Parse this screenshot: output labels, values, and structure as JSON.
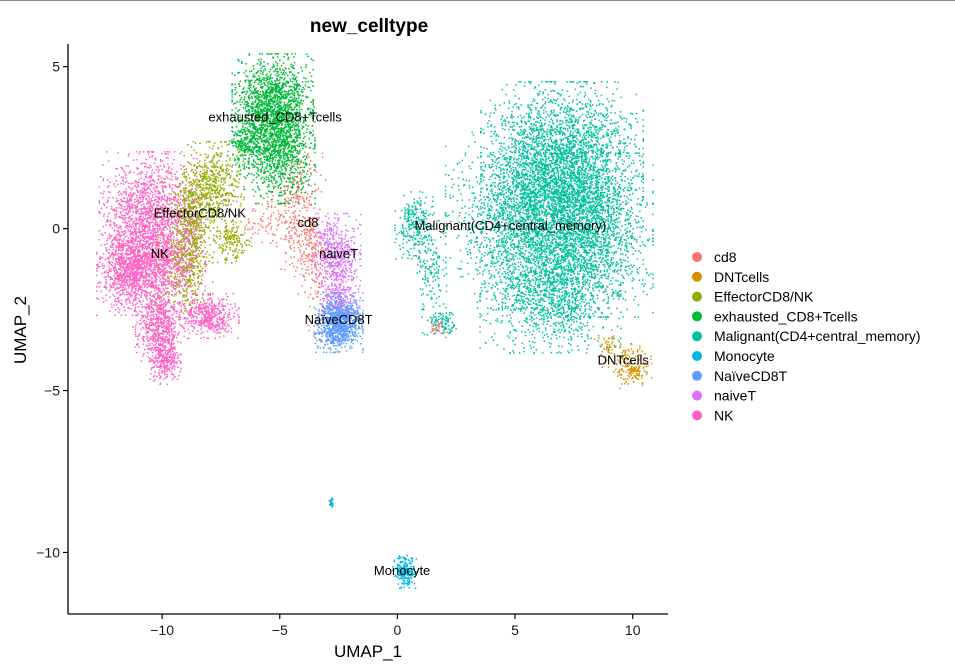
{
  "chart_data": {
    "type": "scatter",
    "title": "new_celltype",
    "xlabel": "UMAP_1",
    "ylabel": "UMAP_2",
    "xlim": [
      -14,
      11.5
    ],
    "ylim": [
      -11.9,
      5.7
    ],
    "x_ticks": [
      -10,
      -5,
      0,
      5,
      10
    ],
    "y_ticks": [
      5,
      0,
      -5,
      -10
    ],
    "x_tick_labels": [
      "−10",
      "−5",
      "0",
      "5",
      "10"
    ],
    "y_tick_labels": [
      "5",
      "0",
      "−5",
      "−10"
    ],
    "grid": false,
    "legend_position": "right",
    "legend": [
      {
        "name": "cd8",
        "color": "#F8766D"
      },
      {
        "name": "DNTcells",
        "color": "#D39200"
      },
      {
        "name": "EffectorCD8/NK",
        "color": "#93AA00"
      },
      {
        "name": "exhausted_CD8+Tcells",
        "color": "#00BA38"
      },
      {
        "name": "Malignant(CD4+central_memory)",
        "color": "#00C19F"
      },
      {
        "name": "Monocyte",
        "color": "#00B9E3"
      },
      {
        "name": "NaïveCD8T",
        "color": "#619CFF"
      },
      {
        "name": "naiveT",
        "color": "#DB72FB"
      },
      {
        "name": "NK",
        "color": "#FF61C3"
      }
    ],
    "cluster_labels": [
      {
        "text": "exhausted_CD8+Tcells",
        "x": -5.2,
        "y": 3.3
      },
      {
        "text": "EffectorCD8/NK",
        "x": -8.4,
        "y": 0.35
      },
      {
        "text": "cd8",
        "x": -3.8,
        "y": 0.05
      },
      {
        "text": "NK",
        "x": -10.1,
        "y": -0.9
      },
      {
        "text": "naiveT",
        "x": -2.5,
        "y": -0.9
      },
      {
        "text": "Malignant(CD4+central_memory)",
        "x": 4.8,
        "y": -0.05
      },
      {
        "text": "NaïveCD8T",
        "x": -2.5,
        "y": -2.95
      },
      {
        "text": "DNTcells",
        "x": 9.6,
        "y": -4.2
      },
      {
        "text": "Monocyte",
        "x": 0.2,
        "y": -10.7
      }
    ],
    "clusters": [
      {
        "name": "cd8",
        "color": "#F8766D",
        "n": 650,
        "blobs": [
          [
            -4.2,
            0.8,
            0.5,
            0.9,
            0.4
          ],
          [
            -3.6,
            -0.6,
            0.5,
            0.5,
            0.25
          ],
          [
            -5.5,
            0.2,
            0.9,
            0.35,
            0.15
          ],
          [
            -3.4,
            -2.0,
            0.35,
            0.6,
            0.1
          ],
          [
            1.7,
            -3.05,
            0.2,
            0.1,
            0.05
          ],
          [
            -10.6,
            -0.8,
            1.0,
            1.2,
            0.05
          ]
        ]
      },
      {
        "name": "DNTcells",
        "color": "#D39200",
        "n": 230,
        "blobs": [
          [
            10.0,
            -4.25,
            0.35,
            0.3,
            0.75
          ],
          [
            9.0,
            -3.7,
            0.3,
            0.25,
            0.25
          ]
        ]
      },
      {
        "name": "EffectorCD8/NK",
        "color": "#93AA00",
        "n": 1500,
        "blobs": [
          [
            -7.9,
            1.3,
            0.6,
            0.6,
            0.35
          ],
          [
            -8.8,
            0.3,
            0.5,
            0.7,
            0.3
          ],
          [
            -9.0,
            -1.2,
            0.5,
            0.7,
            0.25
          ],
          [
            -7.0,
            -0.4,
            0.35,
            0.3,
            0.1
          ]
        ]
      },
      {
        "name": "exhausted_CD8+Tcells",
        "color": "#00BA38",
        "n": 2600,
        "blobs": [
          [
            -5.3,
            3.9,
            0.75,
            0.65,
            0.5
          ],
          [
            -5.0,
            2.5,
            0.65,
            0.75,
            0.4
          ],
          [
            -6.4,
            2.6,
            0.35,
            0.4,
            0.1
          ]
        ]
      },
      {
        "name": "Malignant(CD4+central_memory)",
        "color": "#00C19F",
        "n": 8200,
        "blobs": [
          [
            7.0,
            2.0,
            1.5,
            1.1,
            0.34
          ],
          [
            5.5,
            0.3,
            1.5,
            1.2,
            0.26
          ],
          [
            8.1,
            -0.2,
            1.2,
            1.1,
            0.2
          ],
          [
            6.5,
            -2.0,
            1.3,
            0.8,
            0.14
          ],
          [
            0.7,
            0.1,
            0.35,
            0.45,
            0.03
          ],
          [
            1.4,
            -1.4,
            0.3,
            0.9,
            0.02
          ],
          [
            2.0,
            -2.9,
            0.25,
            0.2,
            0.01
          ]
        ]
      },
      {
        "name": "Monocyte",
        "color": "#00B9E3",
        "n": 230,
        "blobs": [
          [
            0.3,
            -10.6,
            0.22,
            0.22,
            0.9
          ],
          [
            -2.8,
            -8.45,
            0.04,
            0.07,
            0.1
          ]
        ]
      },
      {
        "name": "NaïveCD8T",
        "color": "#619CFF",
        "n": 1100,
        "blobs": [
          [
            -2.5,
            -2.9,
            0.45,
            0.4,
            1.0
          ]
        ]
      },
      {
        "name": "naiveT",
        "color": "#DB72FB",
        "n": 650,
        "blobs": [
          [
            -2.6,
            -0.8,
            0.45,
            0.55,
            0.75
          ],
          [
            -2.4,
            -2.0,
            0.35,
            0.35,
            0.25
          ]
        ]
      },
      {
        "name": "NK",
        "color": "#FF61C3",
        "n": 4300,
        "blobs": [
          [
            -10.6,
            0.3,
            0.9,
            0.9,
            0.35
          ],
          [
            -11.4,
            -1.3,
            0.6,
            0.6,
            0.2
          ],
          [
            -10.0,
            -1.2,
            0.8,
            0.6,
            0.15
          ],
          [
            -10.1,
            -3.0,
            0.45,
            0.55,
            0.13
          ],
          [
            -9.9,
            -4.0,
            0.3,
            0.35,
            0.07
          ],
          [
            -8.0,
            -2.7,
            0.55,
            0.3,
            0.1
          ]
        ]
      }
    ]
  }
}
